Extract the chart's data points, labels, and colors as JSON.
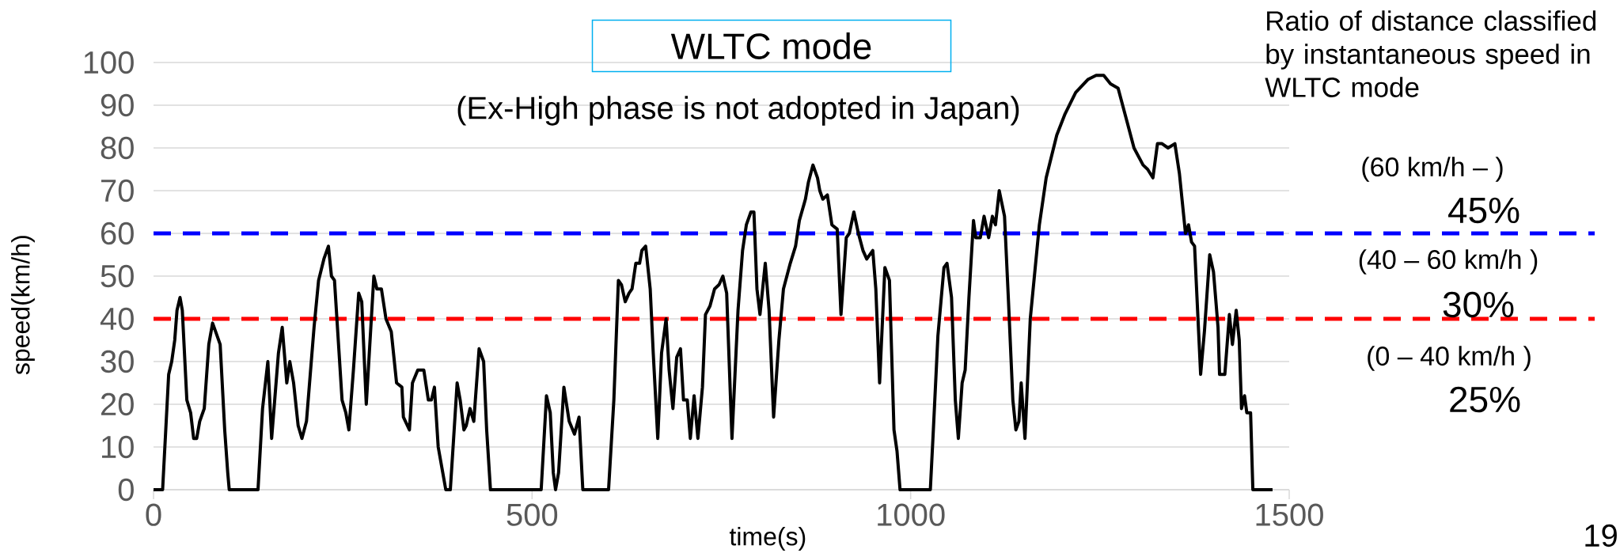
{
  "chart_data": {
    "type": "line",
    "title": "WLTC mode",
    "subtitle": "(Ex-High phase is not adopted in Japan)",
    "xlabel": "time(s)",
    "ylabel": "speed(km/h)",
    "annotations": [
      "Ratio of distance classified by instantaneous speed in WLTC mode",
      "(60 km/h – )",
      "45%",
      "(40 – 60 km/h )",
      "30%",
      "(0 – 40 km/h )",
      "25%",
      "19"
    ],
    "x": [
      0,
      12,
      20,
      24,
      28,
      31,
      35,
      38,
      44,
      49,
      53,
      57,
      61,
      67,
      73,
      78,
      82,
      88,
      94,
      98,
      100,
      138,
      144,
      151,
      156,
      165,
      170,
      176,
      180,
      185,
      191,
      196,
      202,
      212,
      218,
      225,
      231,
      235,
      239,
      249,
      254,
      258,
      264,
      271,
      275,
      281,
      291,
      295,
      301,
      307,
      314,
      321,
      328,
      330,
      338,
      342,
      349,
      357,
      363,
      367,
      371,
      376,
      382,
      386,
      392,
      396,
      401,
      405,
      410,
      413,
      418,
      423,
      430,
      436,
      440,
      445,
      512,
      519,
      524,
      528,
      531,
      535,
      542,
      549,
      556,
      562,
      567,
      601,
      608,
      614,
      618,
      623,
      628,
      632,
      637,
      642,
      645,
      650,
      656,
      660,
      666,
      671,
      677,
      681,
      686,
      691,
      696,
      700,
      705,
      709,
      714,
      719,
      725,
      729,
      735,
      741,
      747,
      752,
      757,
      764,
      772,
      778,
      783,
      789,
      793,
      797,
      801,
      808,
      813,
      819,
      826,
      832,
      841,
      848,
      853,
      861,
      865,
      871,
      877,
      880,
      884,
      890,
      896,
      903,
      908,
      915,
      919,
      925,
      931,
      937,
      942,
      950,
      954,
      959,
      966,
      972,
      978,
      982,
      986,
      1026,
      1030,
      1036,
      1044,
      1048,
      1054,
      1059,
      1063,
      1068,
      1072,
      1077,
      1083,
      1086,
      1092,
      1097,
      1103,
      1108,
      1112,
      1117,
      1124,
      1129,
      1135,
      1139,
      1143,
      1146,
      1151,
      1158,
      1170,
      1179,
      1193,
      1204,
      1218,
      1234,
      1245,
      1255,
      1264,
      1274,
      1286,
      1295,
      1307,
      1313,
      1320,
      1326,
      1332,
      1340,
      1349,
      1355,
      1363,
      1367,
      1371,
      1375,
      1379,
      1383,
      1388,
      1395,
      1400,
      1406,
      1408,
      1415,
      1421,
      1425,
      1430,
      1434,
      1437,
      1441,
      1444,
      1449,
      1452,
      1478
    ],
    "values": [
      0,
      0,
      27,
      30,
      35,
      42,
      45,
      42,
      21,
      18,
      12,
      12,
      16,
      19,
      34,
      39,
      37,
      34,
      14,
      4,
      0,
      0,
      19,
      30,
      12,
      32,
      38,
      25,
      30,
      25,
      15,
      12,
      16,
      38,
      49,
      54,
      57,
      50,
      49,
      21,
      18,
      14,
      28,
      46,
      44,
      20,
      50,
      47,
      47,
      40,
      37,
      25,
      24,
      17,
      14,
      25,
      28,
      28,
      21,
      21,
      24,
      10,
      4,
      0,
      0,
      11,
      25,
      21,
      14,
      15,
      19,
      16,
      33,
      30,
      14,
      0,
      0,
      22,
      18,
      4,
      0,
      4,
      24,
      16,
      13,
      17,
      0,
      0,
      21,
      49,
      48,
      44,
      46,
      47,
      53,
      53,
      56,
      57,
      47,
      32,
      12,
      32,
      40,
      28,
      19,
      31,
      33,
      21,
      21,
      12,
      22,
      12,
      24,
      41,
      43,
      47,
      48,
      50,
      46,
      12,
      42,
      56,
      62,
      65,
      65,
      47,
      41,
      53,
      42,
      17,
      35,
      47,
      53,
      57,
      63,
      68,
      72,
      76,
      73,
      70,
      68,
      69,
      62,
      61,
      41,
      59,
      60,
      65,
      60,
      56,
      54,
      56,
      47,
      25,
      52,
      49,
      14,
      9,
      0,
      0,
      14,
      36,
      52,
      53,
      45,
      21,
      12,
      25,
      28,
      45,
      63,
      59,
      59,
      64,
      59,
      64,
      62,
      70,
      64,
      45,
      21,
      14,
      16,
      25,
      12,
      40,
      62,
      73,
      83,
      88,
      93,
      96,
      97,
      97,
      95,
      94,
      86,
      80,
      76,
      75,
      73,
      81,
      81,
      80,
      81,
      74,
      60,
      62,
      58,
      57,
      42,
      27,
      37,
      55,
      51,
      38,
      27,
      27,
      41,
      34,
      42,
      35,
      19,
      22,
      18,
      18,
      0,
      0
    ],
    "color": "#000000",
    "line_style": "solid",
    "xlim": [
      0,
      1500
    ],
    "ylim": [
      0,
      100
    ],
    "xticks": [
      0,
      500,
      1000,
      1500
    ],
    "yticks": [
      0,
      10,
      20,
      30,
      40,
      50,
      60,
      70,
      80,
      90,
      100
    ],
    "grid": "y",
    "ref_lines": [
      {
        "axis": "y",
        "value": 60,
        "color": "#0000ff",
        "line_style": "dashed"
      },
      {
        "axis": "y",
        "value": 40,
        "color": "#ff0000",
        "line_style": "dashed"
      }
    ]
  }
}
